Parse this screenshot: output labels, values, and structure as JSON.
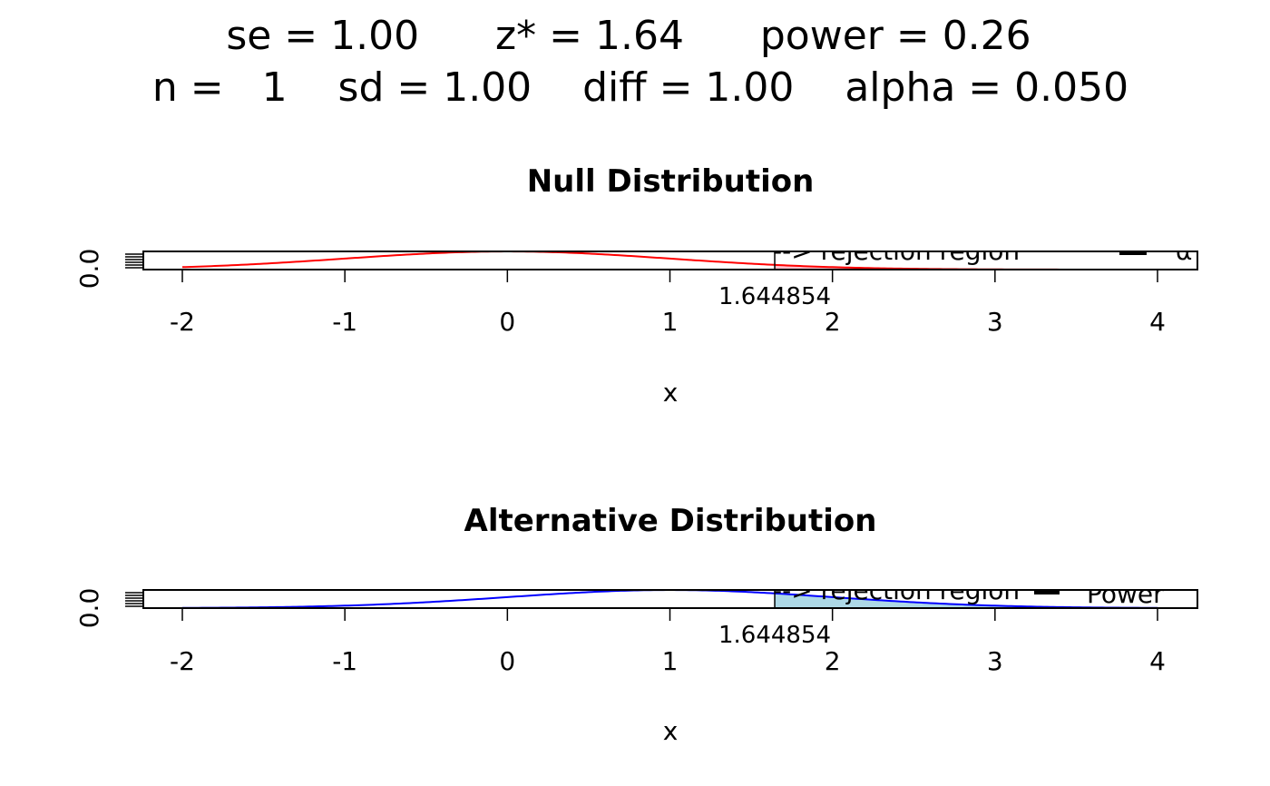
{
  "header": {
    "line1": "se = 1.00      z* = 1.64      power = 0.26",
    "line2": "n =   1    sd = 1.00    diff = 1.00    alpha = 0.050"
  },
  "chart_data": [
    {
      "type": "line",
      "title": "Null Distribution",
      "xlabel": "x",
      "ylabel": "",
      "xlim": [
        -2,
        4
      ],
      "ylim": [
        0,
        0.4
      ],
      "x_ticks": [
        -2,
        -1,
        0,
        1,
        2,
        3,
        4
      ],
      "y_tick_label": "0.0",
      "curve": {
        "name": "null",
        "distribution": "normal",
        "mean": 0,
        "sd": 1,
        "color": "#ff0000"
      },
      "critical_value": 1.644854,
      "critical_value_label": "1.644854",
      "shade_from": 1.644854,
      "shade_color": "#ffc0cb",
      "legend": [
        "--> rejection region",
        "α"
      ]
    },
    {
      "type": "line",
      "title": "Alternative Distribution",
      "xlabel": "x",
      "ylabel": "",
      "xlim": [
        -2,
        4
      ],
      "ylim": [
        0,
        0.4
      ],
      "x_ticks": [
        -2,
        -1,
        0,
        1,
        2,
        3,
        4
      ],
      "y_tick_label": "0.0",
      "curve": {
        "name": "alternative",
        "distribution": "normal",
        "mean": 1,
        "sd": 1,
        "color": "#0000ff"
      },
      "critical_value": 1.644854,
      "critical_value_label": "1.644854",
      "shade_from": 1.644854,
      "shade_color": "#add8e6",
      "legend": [
        "--> rejection region",
        "Power"
      ]
    }
  ]
}
